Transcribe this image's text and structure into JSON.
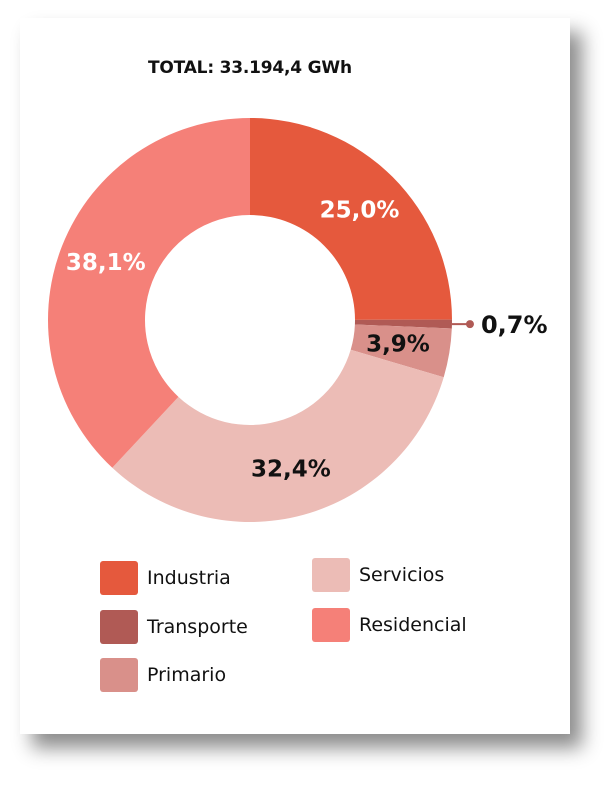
{
  "chart_data": {
    "type": "donut",
    "title": "TOTAL: 33.194,4 GWh",
    "categories": [
      "Industria",
      "Transporte",
      "Primario",
      "Servicios",
      "Residencial"
    ],
    "values": [
      25.0,
      0.7,
      3.9,
      32.4,
      38.1
    ],
    "labels": [
      "25,0%",
      "0,7%",
      "3,9%",
      "32,4%",
      "38,1%"
    ],
    "colors": [
      "#e5593d",
      "#b05a55",
      "#d9908a",
      "#ecbcb6",
      "#f58078"
    ],
    "label_colors": [
      "#ffffff",
      "#111111",
      "#111111",
      "#111111",
      "#ffffff"
    ],
    "legend_position": "bottom"
  }
}
